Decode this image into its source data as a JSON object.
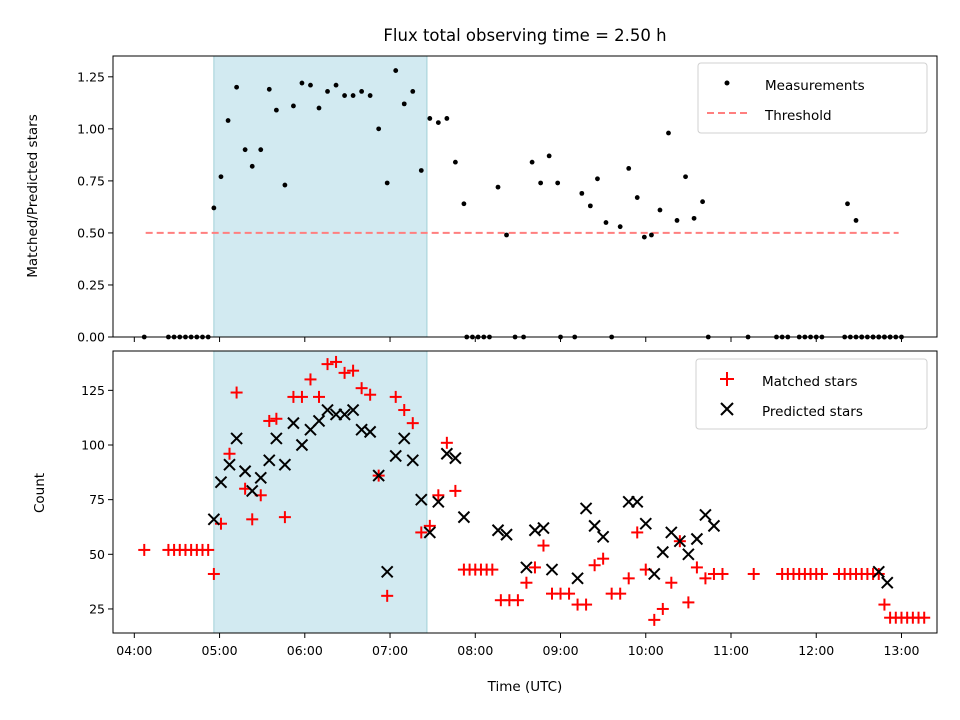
{
  "chart_data": [
    {
      "type": "scatter",
      "title": "Flux total observing time = 2.50 h",
      "xlabel": "",
      "ylabel": "Matched/Predicted stars",
      "xlim": [
        "03:45",
        "13:25"
      ],
      "ylim": [
        0,
        1.35
      ],
      "yticks": [
        0.0,
        0.25,
        0.5,
        0.75,
        1.0,
        1.25
      ],
      "ytick_labels": [
        "0.00",
        "0.25",
        "0.50",
        "0.75",
        "1.00",
        "1.25"
      ],
      "shaded_interval": [
        "04:56",
        "07:26"
      ],
      "shade_color": "#add8e6",
      "legend": {
        "placement": "top-right",
        "entries": [
          "Measurements",
          "Threshold"
        ]
      },
      "threshold": {
        "name": "Threshold",
        "y": 0.5,
        "x_range": [
          "04:08",
          "12:58"
        ],
        "color": "#ff7f7f",
        "style": "dashed"
      },
      "series": [
        {
          "name": "Measurements",
          "marker": "point",
          "color": "#000000",
          "points": [
            [
              "04:07",
              0.0
            ],
            [
              "04:24",
              0.0
            ],
            [
              "04:28",
              0.0
            ],
            [
              "04:32",
              0.0
            ],
            [
              "04:36",
              0.0
            ],
            [
              "04:40",
              0.0
            ],
            [
              "04:44",
              0.0
            ],
            [
              "04:48",
              0.0
            ],
            [
              "04:52",
              0.0
            ],
            [
              "04:56",
              0.62
            ],
            [
              "05:01",
              0.77
            ],
            [
              "05:06",
              1.04
            ],
            [
              "05:12",
              1.2
            ],
            [
              "05:18",
              0.9
            ],
            [
              "05:23",
              0.82
            ],
            [
              "05:29",
              0.9
            ],
            [
              "05:35",
              1.19
            ],
            [
              "05:40",
              1.09
            ],
            [
              "05:46",
              0.73
            ],
            [
              "05:52",
              1.11
            ],
            [
              "05:58",
              1.22
            ],
            [
              "06:04",
              1.21
            ],
            [
              "06:10",
              1.1
            ],
            [
              "06:16",
              1.18
            ],
            [
              "06:22",
              1.21
            ],
            [
              "06:28",
              1.16
            ],
            [
              "06:34",
              1.16
            ],
            [
              "06:40",
              1.18
            ],
            [
              "06:46",
              1.16
            ],
            [
              "06:52",
              1.0
            ],
            [
              "06:58",
              0.74
            ],
            [
              "07:04",
              1.28
            ],
            [
              "07:10",
              1.12
            ],
            [
              "07:16",
              1.18
            ],
            [
              "07:22",
              0.8
            ],
            [
              "07:28",
              1.05
            ],
            [
              "07:34",
              1.03
            ],
            [
              "07:40",
              1.05
            ],
            [
              "07:46",
              0.84
            ],
            [
              "07:52",
              0.64
            ],
            [
              "07:54",
              0.0
            ],
            [
              "07:58",
              0.0
            ],
            [
              "08:02",
              0.0
            ],
            [
              "08:06",
              0.0
            ],
            [
              "08:10",
              0.0
            ],
            [
              "08:16",
              0.72
            ],
            [
              "08:22",
              0.49
            ],
            [
              "08:28",
              0.0
            ],
            [
              "08:34",
              0.0
            ],
            [
              "08:40",
              0.84
            ],
            [
              "08:46",
              0.74
            ],
            [
              "08:52",
              0.87
            ],
            [
              "08:58",
              0.74
            ],
            [
              "09:00",
              0.0
            ],
            [
              "09:10",
              0.0
            ],
            [
              "09:15",
              0.69
            ],
            [
              "09:21",
              0.63
            ],
            [
              "09:26",
              0.76
            ],
            [
              "09:32",
              0.55
            ],
            [
              "09:36",
              0.0
            ],
            [
              "09:42",
              0.53
            ],
            [
              "09:48",
              0.81
            ],
            [
              "09:54",
              0.67
            ],
            [
              "09:59",
              0.48
            ],
            [
              "10:04",
              0.49
            ],
            [
              "10:10",
              0.61
            ],
            [
              "10:16",
              0.98
            ],
            [
              "10:22",
              0.56
            ],
            [
              "10:28",
              0.77
            ],
            [
              "10:34",
              0.57
            ],
            [
              "10:40",
              0.65
            ],
            [
              "10:44",
              0.0
            ],
            [
              "11:12",
              0.0
            ],
            [
              "11:32",
              0.0
            ],
            [
              "11:36",
              0.0
            ],
            [
              "11:40",
              0.0
            ],
            [
              "11:48",
              0.0
            ],
            [
              "11:52",
              0.0
            ],
            [
              "11:56",
              0.0
            ],
            [
              "12:00",
              0.0
            ],
            [
              "12:04",
              0.0
            ],
            [
              "12:20",
              0.0
            ],
            [
              "12:24",
              0.0
            ],
            [
              "12:28",
              0.0
            ],
            [
              "12:32",
              0.0
            ],
            [
              "12:36",
              0.0
            ],
            [
              "12:40",
              0.0
            ],
            [
              "12:44",
              0.0
            ],
            [
              "12:48",
              0.0
            ],
            [
              "12:52",
              0.0
            ],
            [
              "12:22",
              0.64
            ],
            [
              "12:28",
              0.56
            ],
            [
              "12:32",
              0.0
            ],
            [
              "12:40",
              0.0
            ],
            [
              "12:44",
              0.0
            ],
            [
              "12:48",
              0.0
            ],
            [
              "12:52",
              0.0
            ],
            [
              "12:56",
              0.0
            ],
            [
              "13:00",
              0.0
            ]
          ]
        }
      ]
    },
    {
      "type": "scatter",
      "title": "",
      "xlabel": "Time (UTC)",
      "ylabel": "Count",
      "xlim": [
        "03:45",
        "13:25"
      ],
      "ylim": [
        14,
        143
      ],
      "yticks": [
        25,
        50,
        75,
        100,
        125
      ],
      "ytick_labels": [
        "25",
        "50",
        "75",
        "100",
        "125"
      ],
      "xticks": [
        "04:00",
        "05:00",
        "06:00",
        "07:00",
        "08:00",
        "09:00",
        "10:00",
        "11:00",
        "12:00",
        "13:00"
      ],
      "xtick_labels": [
        "04:00",
        "05:00",
        "06:00",
        "07:00",
        "08:00",
        "09:00",
        "10:00",
        "11:00",
        "12:00",
        "13:00"
      ],
      "shaded_interval": [
        "04:56",
        "07:26"
      ],
      "shade_color": "#add8e6",
      "legend": {
        "placement": "top-right",
        "entries": [
          "Matched stars",
          "Predicted stars"
        ]
      },
      "series": [
        {
          "name": "Matched stars",
          "marker": "plus",
          "color": "#ff0000",
          "points": [
            [
              "04:07",
              52
            ],
            [
              "04:24",
              52
            ],
            [
              "04:28",
              52
            ],
            [
              "04:32",
              52
            ],
            [
              "04:36",
              52
            ],
            [
              "04:40",
              52
            ],
            [
              "04:44",
              52
            ],
            [
              "04:48",
              52
            ],
            [
              "04:52",
              52
            ],
            [
              "04:56",
              41
            ],
            [
              "05:01",
              64
            ],
            [
              "05:07",
              96
            ],
            [
              "05:12",
              124
            ],
            [
              "05:18",
              80
            ],
            [
              "05:23",
              66
            ],
            [
              "05:29",
              77
            ],
            [
              "05:35",
              111
            ],
            [
              "05:40",
              112
            ],
            [
              "05:46",
              67
            ],
            [
              "05:52",
              122
            ],
            [
              "05:58",
              122
            ],
            [
              "06:04",
              130
            ],
            [
              "06:10",
              122
            ],
            [
              "06:16",
              137
            ],
            [
              "06:22",
              138
            ],
            [
              "06:28",
              133
            ],
            [
              "06:34",
              134
            ],
            [
              "06:40",
              126
            ],
            [
              "06:46",
              123
            ],
            [
              "06:52",
              86
            ],
            [
              "06:58",
              31
            ],
            [
              "07:04",
              122
            ],
            [
              "07:10",
              116
            ],
            [
              "07:16",
              110
            ],
            [
              "07:22",
              60
            ],
            [
              "07:28",
              63
            ],
            [
              "07:34",
              77
            ],
            [
              "07:40",
              101
            ],
            [
              "07:46",
              79
            ],
            [
              "07:52",
              43
            ],
            [
              "07:56",
              43
            ],
            [
              "08:00",
              43
            ],
            [
              "08:04",
              43
            ],
            [
              "08:08",
              43
            ],
            [
              "08:12",
              43
            ],
            [
              "08:18",
              29
            ],
            [
              "08:24",
              29
            ],
            [
              "08:30",
              29
            ],
            [
              "08:36",
              37
            ],
            [
              "08:42",
              44
            ],
            [
              "08:48",
              54
            ],
            [
              "08:54",
              32
            ],
            [
              "09:00",
              32
            ],
            [
              "09:06",
              32
            ],
            [
              "09:12",
              27
            ],
            [
              "09:18",
              27
            ],
            [
              "09:24",
              45
            ],
            [
              "09:30",
              48
            ],
            [
              "09:36",
              32
            ],
            [
              "09:42",
              32
            ],
            [
              "09:48",
              39
            ],
            [
              "09:54",
              60
            ],
            [
              "10:00",
              43
            ],
            [
              "10:06",
              20
            ],
            [
              "10:12",
              25
            ],
            [
              "10:18",
              37
            ],
            [
              "10:24",
              56
            ],
            [
              "10:30",
              28
            ],
            [
              "10:36",
              44
            ],
            [
              "10:42",
              39
            ],
            [
              "10:48",
              41
            ],
            [
              "10:54",
              41
            ],
            [
              "11:16",
              41
            ],
            [
              "11:36",
              41
            ],
            [
              "11:40",
              41
            ],
            [
              "11:44",
              41
            ],
            [
              "11:48",
              41
            ],
            [
              "11:52",
              41
            ],
            [
              "11:56",
              41
            ],
            [
              "12:00",
              41
            ],
            [
              "12:04",
              41
            ],
            [
              "12:16",
              41
            ],
            [
              "12:20",
              41
            ],
            [
              "12:24",
              41
            ],
            [
              "12:28",
              41
            ],
            [
              "12:32",
              41
            ],
            [
              "12:36",
              41
            ],
            [
              "12:40",
              41
            ],
            [
              "12:44",
              41
            ],
            [
              "12:48",
              27
            ],
            [
              "12:52",
              21
            ],
            [
              "12:56",
              21
            ],
            [
              "13:00",
              21
            ],
            [
              "13:04",
              21
            ],
            [
              "13:08",
              21
            ],
            [
              "13:12",
              21
            ],
            [
              "13:16",
              21
            ]
          ]
        },
        {
          "name": "Predicted stars",
          "marker": "x",
          "color": "#000000",
          "points": [
            [
              "04:56",
              66
            ],
            [
              "05:01",
              83
            ],
            [
              "05:07",
              91
            ],
            [
              "05:12",
              103
            ],
            [
              "05:18",
              88
            ],
            [
              "05:23",
              79
            ],
            [
              "05:29",
              85
            ],
            [
              "05:35",
              93
            ],
            [
              "05:40",
              103
            ],
            [
              "05:46",
              91
            ],
            [
              "05:52",
              110
            ],
            [
              "05:58",
              100
            ],
            [
              "06:04",
              107
            ],
            [
              "06:10",
              111
            ],
            [
              "06:16",
              116
            ],
            [
              "06:22",
              114
            ],
            [
              "06:28",
              114
            ],
            [
              "06:34",
              116
            ],
            [
              "06:40",
              107
            ],
            [
              "06:46",
              106
            ],
            [
              "06:52",
              86
            ],
            [
              "06:58",
              42
            ],
            [
              "07:04",
              95
            ],
            [
              "07:10",
              103
            ],
            [
              "07:16",
              93
            ],
            [
              "07:22",
              75
            ],
            [
              "07:28",
              60
            ],
            [
              "07:34",
              74
            ],
            [
              "07:40",
              96
            ],
            [
              "07:46",
              94
            ],
            [
              "07:52",
              67
            ],
            [
              "08:16",
              61
            ],
            [
              "08:22",
              59
            ],
            [
              "08:36",
              44
            ],
            [
              "08:42",
              61
            ],
            [
              "08:48",
              62
            ],
            [
              "08:54",
              43
            ],
            [
              "09:12",
              39
            ],
            [
              "09:18",
              71
            ],
            [
              "09:24",
              63
            ],
            [
              "09:30",
              58
            ],
            [
              "09:48",
              74
            ],
            [
              "09:54",
              74
            ],
            [
              "10:00",
              64
            ],
            [
              "10:06",
              41
            ],
            [
              "10:12",
              51
            ],
            [
              "10:18",
              60
            ],
            [
              "10:24",
              56
            ],
            [
              "10:30",
              50
            ],
            [
              "10:36",
              57
            ],
            [
              "10:42",
              68
            ],
            [
              "10:48",
              63
            ],
            [
              "12:44",
              42
            ],
            [
              "12:50",
              37
            ]
          ]
        }
      ]
    }
  ]
}
